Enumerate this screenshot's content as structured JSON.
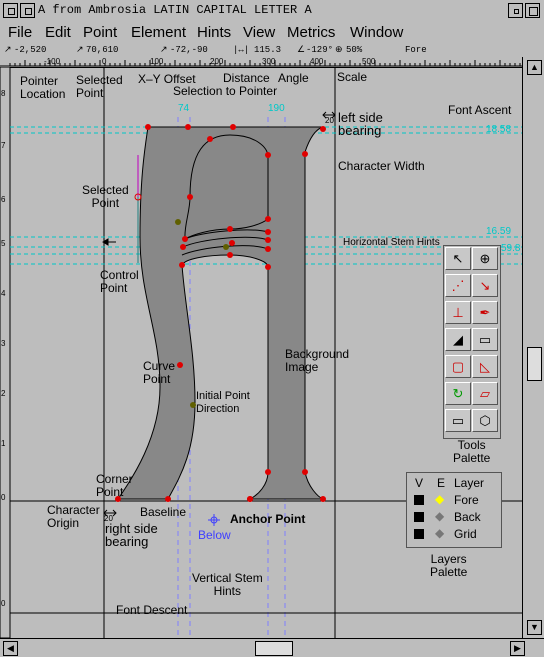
{
  "window": {
    "title": "A from Ambrosia LATIN CAPITAL LETTER A"
  },
  "menu": [
    "File",
    "Edit",
    "Point",
    "Element",
    "Hints",
    "View",
    "Metrics",
    "Window"
  ],
  "infobar": {
    "pointer_location": "-2,520",
    "selected_point": "70,610",
    "xy_offset": "-72,-90",
    "distance": "115.3",
    "angle": "-129°",
    "zoom": "50%",
    "layer": "Fore"
  },
  "ruler": {
    "h_ticks": [
      "-100",
      "0",
      "100",
      "200",
      "300",
      "400",
      "500"
    ],
    "v_ticks": [
      "8",
      "7",
      "6",
      "5",
      "4",
      "3",
      "2",
      "1",
      "0",
      "0"
    ]
  },
  "hint_values": {
    "top_left": "74",
    "top_right": "190",
    "ascent_val": "18.58",
    "stem_val1": "16.59",
    "stem_val2": "59.8"
  },
  "annotations": {
    "pointer_location": "Pointer\nLocation",
    "selected_point": "Selected\nPoint",
    "xy_offset": "X–Y Offset",
    "distance": "Distance",
    "angle": "Angle",
    "selection_to_pointer": "Selection to Pointer",
    "scale": "Scale",
    "left_side_bearing": "left side\nbearing",
    "font_ascent": "Font Ascent",
    "character_width": "Character Width",
    "selected_point_lbl": "Selected\nPoint",
    "horizontal_stem_hints": "Horizontal Stem Hints",
    "control_point": "Control\nPoint",
    "background_image": "Background\nImage",
    "curve_point": "Curve\nPoint",
    "initial_point_direction": "Initial Point\nDirection",
    "corner_point": "Corner\nPoint",
    "character_origin": "Character\nOrigin",
    "baseline": "Baseline",
    "anchor_point": "Anchor Point",
    "below": "Below",
    "right_side_bearing": "right side\nbearing",
    "vertical_stem_hints": "Vertical Stem\nHints",
    "font_descent": "Font Descent",
    "tools_palette": "Tools\nPalette",
    "layers_palette": "Layers\nPalette",
    "bearing_num_left": "20",
    "bearing_num_right": "20"
  },
  "layers": {
    "header_v": "V",
    "header_e": "E",
    "header_layer": "Layer",
    "rows": [
      {
        "name": "Fore",
        "color": "#ffff00"
      },
      {
        "name": "Back",
        "color": "#888888"
      },
      {
        "name": "Grid",
        "color": "#888888"
      }
    ]
  },
  "colors": {
    "point": "#e00000",
    "hint": "#00e0e0",
    "guide": "#4040ff",
    "glyph_fill": "#888888",
    "selected_point": "#c000c0"
  }
}
